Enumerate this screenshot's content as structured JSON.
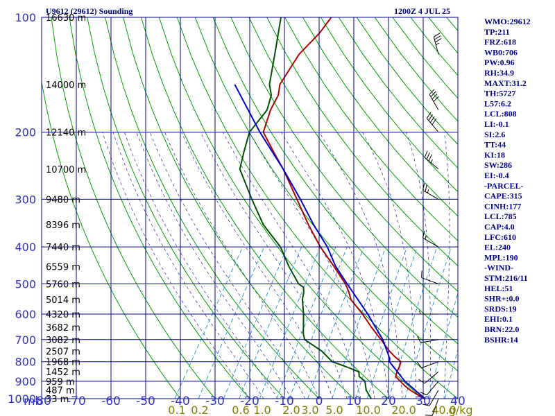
{
  "header": {
    "title": "U9612 (29612) Sounding",
    "time": "1200Z  4 JUL 25"
  },
  "colors": {
    "grid": "#00008b",
    "dry_adiabat": "#00a000",
    "moist_adiabat": "#00008b",
    "mixing_ratio": "#3399cc",
    "temperature": "#b00000",
    "dewpoint": "#005000",
    "parcel": "#0000cc",
    "pressure_labels": "#3333cc",
    "mixing_labels": "#808000",
    "indices": "#00008b"
  },
  "chart_data": {
    "type": "line",
    "title": "U9612 (29612) Sounding",
    "ylabel": "mb",
    "y_log_scale": true,
    "ylim": [
      1000,
      100
    ],
    "xlim": [
      -80,
      40
    ],
    "skew_deg_per_decade": 70,
    "pressure_ticks": [
      100,
      200,
      300,
      400,
      500,
      600,
      700,
      800,
      900,
      1000
    ],
    "temperature_ticks": [
      -80,
      -70,
      -60,
      -50,
      -40,
      -30,
      -20,
      -10,
      0,
      10,
      20,
      30,
      40
    ],
    "temperature_tick_labels": [
      "-80",
      "-70",
      "-60",
      "-50",
      "-40",
      "-30",
      "-20",
      "-10",
      "0",
      "10",
      "20",
      "30",
      "40"
    ],
    "height_labels": [
      {
        "label": "16630 m",
        "p": 100
      },
      {
        "label": "14000 m",
        "p": 150
      },
      {
        "label": "12140 m",
        "p": 200
      },
      {
        "label": "10700 m",
        "p": 250
      },
      {
        "label": "9480 m",
        "p": 300
      },
      {
        "label": "8396 m",
        "p": 350
      },
      {
        "label": "7440 m",
        "p": 400
      },
      {
        "label": "6559 m",
        "p": 450
      },
      {
        "label": "5760 m",
        "p": 500
      },
      {
        "label": "5014 m",
        "p": 550
      },
      {
        "label": "4320 m",
        "p": 600
      },
      {
        "label": "3682 m",
        "p": 650
      },
      {
        "label": "3082 m",
        "p": 700
      },
      {
        "label": "2507 m",
        "p": 750
      },
      {
        "label": "1968 m",
        "p": 800
      },
      {
        "label": "1452 m",
        "p": 850
      },
      {
        "label": "959 m",
        "p": 900
      },
      {
        "label": "487 m",
        "p": 950
      },
      {
        "label": "33 m",
        "p": 1000
      }
    ],
    "mixing_ratio_labels": [
      "0.1",
      "0.2",
      "0.6",
      "1.0",
      "2.0",
      "3.0",
      "5.0",
      "10.0",
      "20.0",
      "40.0",
      "g/kg"
    ],
    "mixing_ratio_lines_gkg": [
      0.1,
      0.2,
      0.4,
      0.6,
      1.0,
      1.5,
      2.0,
      3.0,
      5.0,
      8.0,
      10.0,
      15.0,
      20.0,
      30.0,
      40.0
    ],
    "series": [
      {
        "name": "temperature",
        "points": [
          {
            "p": 1000,
            "t": 30.5
          },
          {
            "p": 975,
            "t": 27.5
          },
          {
            "p": 950,
            "t": 24.7
          },
          {
            "p": 925,
            "t": 22.3
          },
          {
            "p": 900,
            "t": 20.2
          },
          {
            "p": 875,
            "t": 18.0
          },
          {
            "p": 850,
            "t": 17.5
          },
          {
            "p": 825,
            "t": 17.3
          },
          {
            "p": 800,
            "t": 16.8
          },
          {
            "p": 775,
            "t": 14.0
          },
          {
            "p": 750,
            "t": 11.5
          },
          {
            "p": 700,
            "t": 7.0
          },
          {
            "p": 650,
            "t": 2.0
          },
          {
            "p": 600,
            "t": -3.0
          },
          {
            "p": 550,
            "t": -9.0
          },
          {
            "p": 525,
            "t": -11.0
          },
          {
            "p": 500,
            "t": -13.5
          },
          {
            "p": 450,
            "t": -20.0
          },
          {
            "p": 400,
            "t": -27.5
          },
          {
            "p": 350,
            "t": -35.0
          },
          {
            "p": 300,
            "t": -43.0
          },
          {
            "p": 250,
            "t": -52.5
          },
          {
            "p": 225,
            "t": -58.5
          },
          {
            "p": 200,
            "t": -65.0
          },
          {
            "p": 175,
            "t": -67.0
          },
          {
            "p": 160,
            "t": -67.5
          },
          {
            "p": 150,
            "t": -69.0
          },
          {
            "p": 125,
            "t": -69.0
          },
          {
            "p": 110,
            "t": -67.0
          },
          {
            "p": 100,
            "t": -66.5
          }
        ]
      },
      {
        "name": "dewpoint",
        "points": [
          {
            "p": 1000,
            "t": 15.0
          },
          {
            "p": 950,
            "t": 12.0
          },
          {
            "p": 900,
            "t": 10.0
          },
          {
            "p": 875,
            "t": 7.5
          },
          {
            "p": 850,
            "t": 6.5
          },
          {
            "p": 825,
            "t": 2.0
          },
          {
            "p": 800,
            "t": -3.0
          },
          {
            "p": 750,
            "t": -8.0
          },
          {
            "p": 700,
            "t": -15.0
          },
          {
            "p": 675,
            "t": -16.5
          },
          {
            "p": 600,
            "t": -20.0
          },
          {
            "p": 550,
            "t": -23.0
          },
          {
            "p": 525,
            "t": -24.0
          },
          {
            "p": 510,
            "t": -25.0
          },
          {
            "p": 500,
            "t": -27.0
          },
          {
            "p": 450,
            "t": -33.0
          },
          {
            "p": 400,
            "t": -39.0
          },
          {
            "p": 350,
            "t": -48.0
          },
          {
            "p": 300,
            "t": -56.0
          },
          {
            "p": 250,
            "t": -65.0
          },
          {
            "p": 225,
            "t": -67.0
          },
          {
            "p": 200,
            "t": -69.0
          },
          {
            "p": 175,
            "t": -68.0
          },
          {
            "p": 160,
            "t": -69.5
          },
          {
            "p": 150,
            "t": -72.0
          },
          {
            "p": 125,
            "t": -76.0
          },
          {
            "p": 100,
            "t": -81.0
          }
        ]
      },
      {
        "name": "parcel",
        "points": [
          {
            "p": 1000,
            "t": 30.5
          },
          {
            "p": 900,
            "t": 21.5
          },
          {
            "p": 800,
            "t": 13.5
          },
          {
            "p": 785,
            "t": 13.0
          },
          {
            "p": 700,
            "t": 7.5
          },
          {
            "p": 600,
            "t": -1.5
          },
          {
            "p": 500,
            "t": -13.0
          },
          {
            "p": 450,
            "t": -19.5
          },
          {
            "p": 400,
            "t": -25.5
          },
          {
            "p": 350,
            "t": -33.5
          },
          {
            "p": 300,
            "t": -42.0
          },
          {
            "p": 250,
            "t": -52.5
          },
          {
            "p": 200,
            "t": -66.0
          },
          {
            "p": 150,
            "t": -82.0
          }
        ]
      }
    ],
    "wind_barbs": [
      {
        "p": 1000,
        "dir": 200,
        "spd": 10
      },
      {
        "p": 950,
        "dir": 210,
        "spd": 10
      },
      {
        "p": 900,
        "dir": 220,
        "spd": 10
      },
      {
        "p": 850,
        "dir": 230,
        "spd": 10
      },
      {
        "p": 800,
        "dir": 250,
        "spd": 10
      },
      {
        "p": 700,
        "dir": 260,
        "spd": 10
      },
      {
        "p": 600,
        "dir": 270,
        "spd": 5
      },
      {
        "p": 500,
        "dir": 290,
        "spd": 10
      },
      {
        "p": 400,
        "dir": 300,
        "spd": 15
      },
      {
        "p": 300,
        "dir": 300,
        "spd": 25
      },
      {
        "p": 250,
        "dir": 310,
        "spd": 35
      },
      {
        "p": 200,
        "dir": 320,
        "spd": 40
      },
      {
        "p": 175,
        "dir": 330,
        "spd": 40
      },
      {
        "p": 125,
        "dir": 345,
        "spd": 35
      }
    ]
  },
  "indices": [
    "WMO:29612",
    "TP:211",
    "FRZ:618",
    "WB0:706",
    "PW:0.96",
    "RH:34.9",
    "MAXT:31.2",
    "TH:5727",
    "L57:6.2",
    "LCL:808",
    "LI:-0.1",
    "SI:2.6",
    "TT:44",
    "KI:18",
    "SW:286",
    "EI:-0.4",
    "-PARCEL-",
    "CAPE:315",
    "CINH:177",
    "LCL:785",
    "CAP:4.0",
    "LFC:610",
    "EL:240",
    "MPL:190",
    "-WIND-",
    "STM:216/11",
    "HEL:51",
    "SHR+:0.0",
    "SRDS:19",
    "EHI:0.1",
    "BRN:22.0",
    "BSHR:14"
  ]
}
